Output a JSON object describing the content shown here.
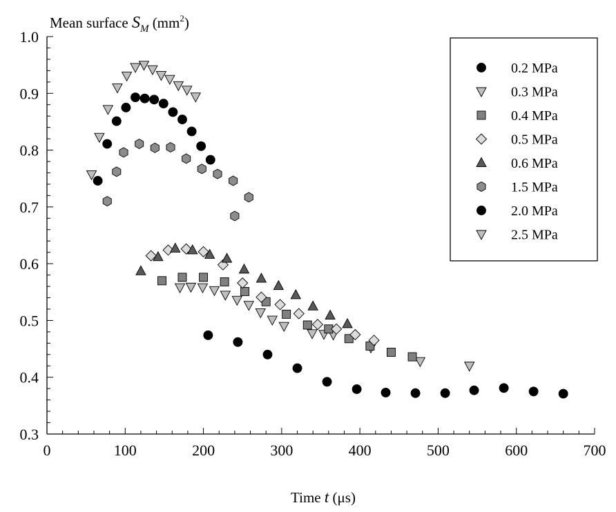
{
  "chart_data": {
    "type": "scatter",
    "ylabel": {
      "prefix": "Mean surface ",
      "symbol": "S",
      "subscript": "M",
      "unit": " (mm",
      "sup": "2",
      "close": ")"
    },
    "xlabel": {
      "prefix": "Time ",
      "symbol": "t",
      "unit": " (μs)"
    },
    "xlim": [
      0,
      700
    ],
    "ylim": [
      0.3,
      1.0
    ],
    "xticks": [
      "0",
      "100",
      "200",
      "300",
      "400",
      "500",
      "600",
      "700"
    ],
    "yticks": [
      "0.3",
      "0.4",
      "0.5",
      "0.6",
      "0.7",
      "0.8",
      "0.9",
      "1.0"
    ],
    "grid": false,
    "legend_position": "top-right",
    "series": [
      {
        "name": "0.2 MPa",
        "marker": "circle",
        "fill": "#000000",
        "points": [
          [
            206,
            0.474
          ],
          [
            244,
            0.462
          ],
          [
            282,
            0.44
          ],
          [
            320,
            0.416
          ],
          [
            358,
            0.392
          ],
          [
            396,
            0.379
          ],
          [
            433,
            0.373
          ],
          [
            471,
            0.372
          ],
          [
            509,
            0.372
          ],
          [
            546,
            0.377
          ],
          [
            584,
            0.381
          ],
          [
            622,
            0.375
          ],
          [
            660,
            0.371
          ]
        ]
      },
      {
        "name": "0.3 MPa",
        "marker": "triangle-down",
        "fill": "#bfbfbf",
        "points": [
          [
            170,
            0.558
          ],
          [
            184,
            0.559
          ],
          [
            199,
            0.558
          ],
          [
            214,
            0.553
          ],
          [
            228,
            0.545
          ],
          [
            243,
            0.536
          ],
          [
            258,
            0.527
          ],
          [
            273,
            0.514
          ],
          [
            288,
            0.501
          ],
          [
            303,
            0.49
          ],
          [
            339,
            0.477
          ],
          [
            354,
            0.476
          ],
          [
            366,
            0.475
          ],
          [
            414,
            0.452
          ],
          [
            477,
            0.428
          ],
          [
            540,
            0.42
          ]
        ]
      },
      {
        "name": "0.4 MPa",
        "marker": "square",
        "fill": "#808080",
        "points": [
          [
            147,
            0.57
          ],
          [
            173,
            0.576
          ],
          [
            200,
            0.576
          ],
          [
            227,
            0.568
          ],
          [
            253,
            0.551
          ],
          [
            280,
            0.533
          ],
          [
            306,
            0.511
          ],
          [
            333,
            0.492
          ],
          [
            360,
            0.485
          ],
          [
            386,
            0.468
          ],
          [
            413,
            0.455
          ],
          [
            440,
            0.444
          ],
          [
            467,
            0.436
          ]
        ]
      },
      {
        "name": "0.5 MPa",
        "marker": "diamond",
        "fill": "#dcdcdc",
        "points": [
          [
            133,
            0.614
          ],
          [
            155,
            0.624
          ],
          [
            178,
            0.626
          ],
          [
            200,
            0.621
          ],
          [
            225,
            0.598
          ],
          [
            250,
            0.566
          ],
          [
            274,
            0.541
          ],
          [
            298,
            0.528
          ],
          [
            322,
            0.512
          ],
          [
            346,
            0.493
          ],
          [
            370,
            0.485
          ],
          [
            394,
            0.475
          ],
          [
            418,
            0.465
          ]
        ]
      },
      {
        "name": "0.6 MPa",
        "marker": "triangle-up",
        "fill": "#595959",
        "points": [
          [
            120,
            0.587
          ],
          [
            142,
            0.612
          ],
          [
            164,
            0.627
          ],
          [
            186,
            0.624
          ],
          [
            208,
            0.616
          ],
          [
            230,
            0.609
          ],
          [
            252,
            0.59
          ],
          [
            274,
            0.574
          ],
          [
            296,
            0.561
          ],
          [
            318,
            0.545
          ],
          [
            340,
            0.525
          ],
          [
            362,
            0.509
          ],
          [
            384,
            0.494
          ]
        ]
      },
      {
        "name": "1.5 MPa",
        "marker": "hexagon",
        "fill": "#8c8c8c",
        "points": [
          [
            77,
            0.71
          ],
          [
            98,
            0.796
          ],
          [
            118,
            0.811
          ],
          [
            138,
            0.804
          ],
          [
            158,
            0.805
          ],
          [
            178,
            0.785
          ],
          [
            198,
            0.767
          ],
          [
            218,
            0.758
          ],
          [
            238,
            0.746
          ],
          [
            258,
            0.717
          ],
          [
            240,
            0.684
          ],
          [
            89,
            0.762
          ]
        ]
      },
      {
        "name": "2.0 MPa",
        "marker": "circle",
        "fill": "#000000",
        "points": [
          [
            65,
            0.746
          ],
          [
            77,
            0.811
          ],
          [
            89,
            0.851
          ],
          [
            101,
            0.875
          ],
          [
            113,
            0.893
          ],
          [
            125,
            0.891
          ],
          [
            137,
            0.889
          ],
          [
            149,
            0.882
          ],
          [
            161,
            0.867
          ],
          [
            173,
            0.854
          ],
          [
            185,
            0.833
          ],
          [
            197,
            0.807
          ],
          [
            209,
            0.783
          ]
        ]
      },
      {
        "name": "2.5 MPa",
        "marker": "triangle-down",
        "fill": "#bfbfbf",
        "points": [
          [
            57,
            0.757
          ],
          [
            67,
            0.823
          ],
          [
            78,
            0.872
          ],
          [
            90,
            0.91
          ],
          [
            102,
            0.931
          ],
          [
            113,
            0.946
          ],
          [
            124,
            0.95
          ],
          [
            135,
            0.942
          ],
          [
            146,
            0.932
          ],
          [
            157,
            0.925
          ],
          [
            168,
            0.914
          ],
          [
            179,
            0.906
          ],
          [
            190,
            0.894
          ]
        ]
      }
    ]
  }
}
